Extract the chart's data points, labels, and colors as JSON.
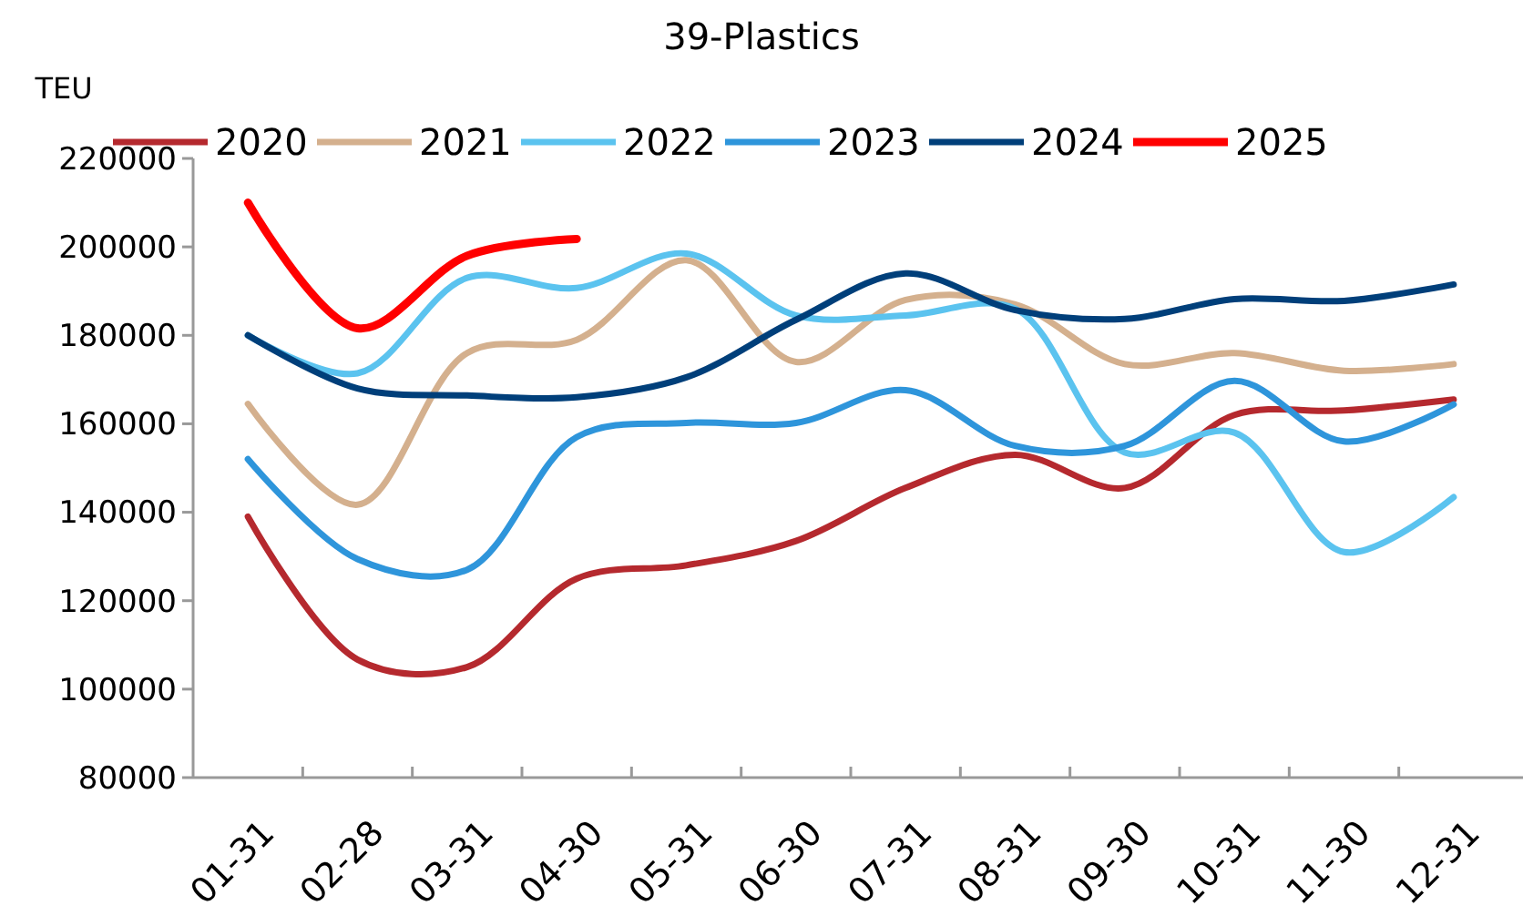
{
  "chart_data": {
    "type": "line",
    "title": "39-Plastics",
    "ylabel": "TEU",
    "categories": [
      "01-31",
      "02-28",
      "03-31",
      "04-30",
      "05-31",
      "06-30",
      "07-31",
      "08-31",
      "09-30",
      "10-31",
      "11-30",
      "12-31"
    ],
    "series": [
      {
        "name": "2020",
        "color": "#b5292e",
        "values": [
          139000,
          106700,
          105000,
          125000,
          128000,
          133500,
          145500,
          153000,
          145500,
          162000,
          163000,
          165500
        ]
      },
      {
        "name": "2021",
        "color": "#d4b08e",
        "values": [
          164500,
          141700,
          176000,
          179000,
          197000,
          174000,
          188000,
          187000,
          173500,
          176000,
          172000,
          173500
        ]
      },
      {
        "name": "2022",
        "color": "#5bc3ef",
        "values": [
          180000,
          171400,
          193000,
          190700,
          198500,
          184500,
          184500,
          186000,
          153500,
          158000,
          131000,
          143400
        ]
      },
      {
        "name": "2023",
        "color": "#2e95db",
        "values": [
          152000,
          129400,
          127000,
          157000,
          160200,
          160200,
          167600,
          155000,
          155000,
          169700,
          156000,
          164400
        ]
      },
      {
        "name": "2024",
        "color": "#003f7a",
        "values": [
          180000,
          168000,
          166400,
          166000,
          170500,
          183500,
          194000,
          185700,
          183700,
          188200,
          187800,
          191500
        ]
      },
      {
        "name": "2025",
        "color": "#ff0000",
        "values": [
          210000,
          181600,
          198000,
          201800,
          null,
          null,
          null,
          null,
          null,
          null,
          null,
          null
        ]
      }
    ],
    "ylim": [
      80000,
      220000
    ],
    "yticks": [
      80000,
      100000,
      120000,
      140000,
      160000,
      180000,
      200000,
      220000
    ],
    "grid": false,
    "legend": "top",
    "marker": "none",
    "line_style": "solid"
  }
}
